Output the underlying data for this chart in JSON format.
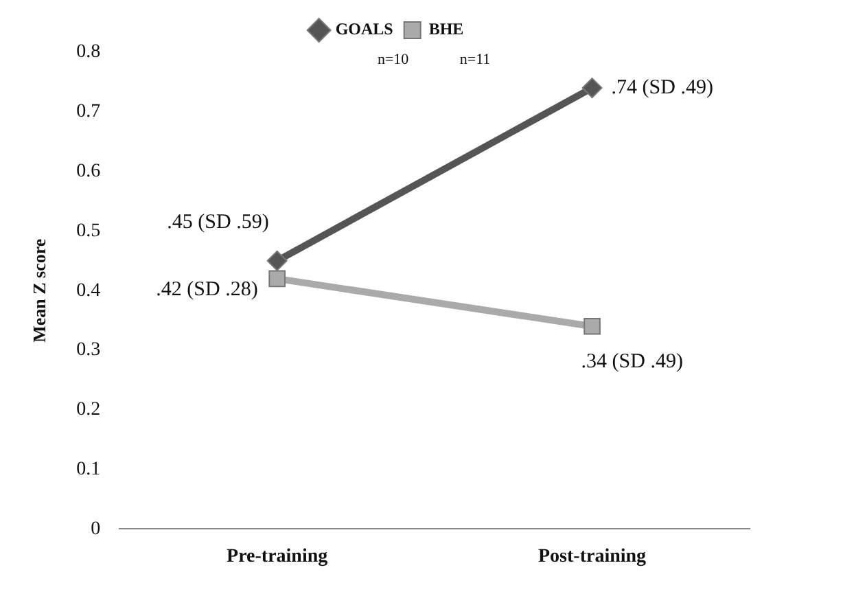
{
  "chart_data": {
    "type": "line",
    "categories": [
      "Pre-training",
      "Post-training"
    ],
    "ylabel": "Mean Z score",
    "ylim": [
      0,
      0.8
    ],
    "yticks": [
      0,
      0.1,
      0.2,
      0.3,
      0.4,
      0.5,
      0.6,
      0.7,
      0.8
    ],
    "grid": false,
    "legend": "top",
    "annotations": [
      "n=10",
      "n=11"
    ],
    "series": [
      {
        "name": "GOALS",
        "color": "#555555",
        "marker": "diamond",
        "values": [
          0.45,
          0.74
        ],
        "value_labels": [
          ".45 (SD .59)",
          ".74 (SD .49)"
        ]
      },
      {
        "name": "BHE",
        "color": "#aaaaaa",
        "marker": "square",
        "values": [
          0.42,
          0.34
        ],
        "value_labels": [
          ".42 (SD .28)",
          ".34 (SD .49)"
        ]
      }
    ]
  }
}
